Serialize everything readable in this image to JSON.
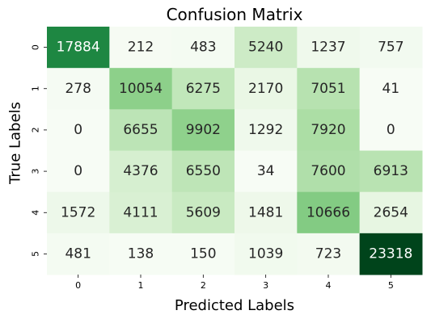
{
  "chart_data": {
    "type": "heatmap",
    "title": "Confusion Matrix",
    "xlabel": "Predicted Labels",
    "ylabel": "True Labels",
    "x_ticks": [
      "0",
      "1",
      "2",
      "3",
      "4",
      "5"
    ],
    "y_ticks": [
      "0",
      "1",
      "2",
      "3",
      "4",
      "5"
    ],
    "colormap": "Greens",
    "colorbar": false,
    "values": [
      [
        17884,
        212,
        483,
        5240,
        1237,
        757
      ],
      [
        278,
        10054,
        6275,
        2170,
        7051,
        41
      ],
      [
        0,
        6655,
        9902,
        1292,
        7920,
        0
      ],
      [
        0,
        4376,
        6550,
        34,
        7600,
        6913
      ],
      [
        1572,
        4111,
        5609,
        1481,
        10666,
        2654
      ],
      [
        481,
        138,
        150,
        1039,
        723,
        23318
      ]
    ]
  },
  "colors": {
    "text_dark": "#262626",
    "text_light": "#ffffff"
  }
}
